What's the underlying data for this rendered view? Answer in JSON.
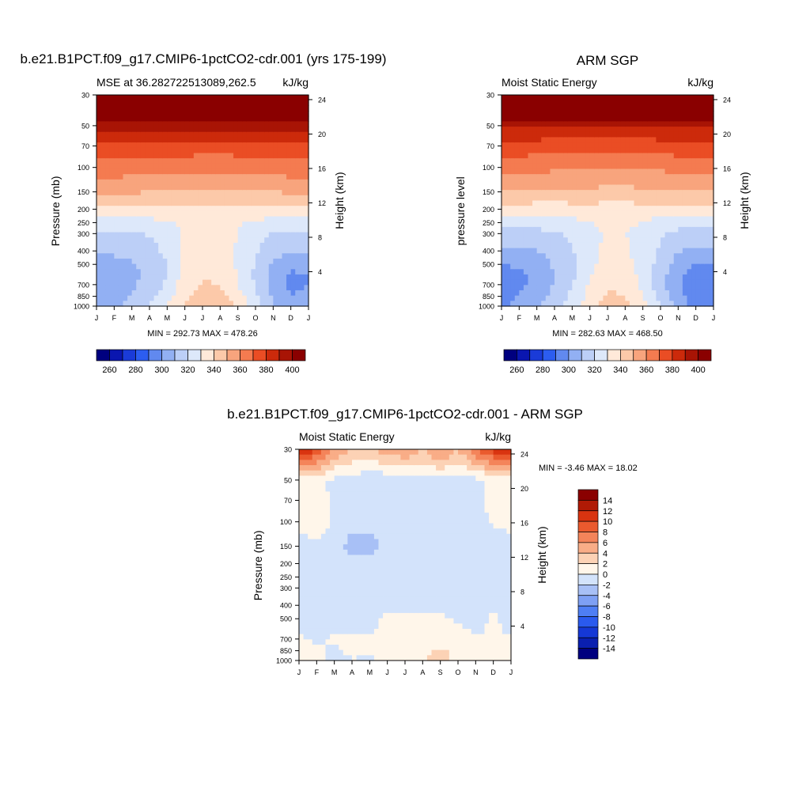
{
  "palettes": {
    "absolute": [
      "#00007f",
      "#0a16b0",
      "#1a3bd8",
      "#2c5df0",
      "#6189ef",
      "#92b0f3",
      "#bccff7",
      "#dde8fa",
      "#ffe9d9",
      "#fcc9a9",
      "#f8a47d",
      "#f47b50",
      "#ea4d24",
      "#cc2a0b",
      "#a81405",
      "#8a0000"
    ],
    "difference": [
      "#00007f",
      "#0a1fb0",
      "#1538d6",
      "#2a5aee",
      "#4e7ef4",
      "#7ea0f4",
      "#a8c0f6",
      "#d3e3fb",
      "#fff6ea",
      "#fcd2b5",
      "#f9ad87",
      "#f4845a",
      "#ea5a2e",
      "#d93410",
      "#b01a05",
      "#8a0000"
    ]
  },
  "chart_data": [
    {
      "id": "model",
      "type": "heatmap",
      "title": "b.e21.B1PCT.f09_g17.CMIP6-1pctCO2-cdr.001 (yrs 175-199)",
      "left_title": "MSE at 36.282722513089,262.5",
      "right_title": "kJ/kg",
      "ylabel": "Pressure (mb)",
      "y2label": "Height (km)",
      "x_ticks": [
        "J",
        "F",
        "M",
        "A",
        "M",
        "J",
        "J",
        "A",
        "S",
        "O",
        "N",
        "D",
        "J"
      ],
      "y_ticks": [
        30,
        50,
        70,
        100,
        150,
        200,
        250,
        300,
        400,
        500,
        700,
        850,
        1000
      ],
      "y2_ticks": [
        24,
        20,
        16,
        12,
        8,
        4
      ],
      "stats": "MIN = 292.73 MAX = 478.26",
      "levels": [
        260,
        270,
        280,
        290,
        300,
        310,
        320,
        330,
        340,
        350,
        360,
        370,
        380,
        390,
        400
      ],
      "colorbar_labels": [
        "260",
        "280",
        "300",
        "320",
        "340",
        "360",
        "380",
        "400"
      ],
      "palette": "absolute",
      "profile_p": [
        1000,
        925,
        850,
        700,
        600,
        500,
        400,
        300,
        250,
        200,
        150,
        100,
        70,
        50,
        30
      ],
      "profile_v": [
        [
          304,
          304,
          302,
          300,
          300,
          304,
          312,
          318,
          326,
          338,
          352,
          366,
          378,
          394,
          460
        ],
        [
          308,
          308,
          306,
          304,
          304,
          306,
          312,
          318,
          326,
          337,
          351,
          366,
          377,
          394,
          460
        ],
        [
          312,
          312,
          310,
          308,
          307,
          309,
          314,
          319,
          326,
          337,
          351,
          365,
          377,
          394,
          460
        ],
        [
          320,
          318,
          316,
          314,
          313,
          314,
          317,
          321,
          327,
          337,
          350,
          364,
          376,
          394,
          460
        ],
        [
          330,
          328,
          326,
          322,
          320,
          320,
          322,
          324,
          329,
          338,
          350,
          364,
          376,
          394,
          460
        ],
        [
          340,
          339,
          338,
          336,
          334,
          333,
          332,
          331,
          332,
          338,
          350,
          364,
          376,
          394,
          460
        ],
        [
          348,
          346,
          344,
          341,
          339,
          337,
          335,
          333,
          333,
          338,
          349,
          363,
          375,
          394,
          460
        ],
        [
          347,
          345,
          343,
          340,
          338,
          336,
          334,
          333,
          333,
          338,
          349,
          363,
          375,
          394,
          460
        ],
        [
          338,
          336,
          334,
          330,
          329,
          329,
          329,
          330,
          331,
          337,
          349,
          363,
          376,
          394,
          460
        ],
        [
          326,
          324,
          322,
          319,
          318,
          319,
          321,
          324,
          328,
          337,
          349,
          364,
          376,
          394,
          460
        ],
        [
          310,
          310,
          308,
          306,
          306,
          309,
          314,
          319,
          327,
          337,
          350,
          365,
          377,
          394,
          460
        ],
        [
          300,
          302,
          300,
          298,
          298,
          303,
          311,
          318,
          326,
          338,
          351,
          366,
          378,
          394,
          460
        ],
        [
          304,
          304,
          302,
          300,
          300,
          304,
          312,
          318,
          326,
          338,
          352,
          366,
          378,
          394,
          460
        ]
      ]
    },
    {
      "id": "obs",
      "type": "heatmap",
      "title": "ARM SGP",
      "left_title": "Moist Static Energy",
      "right_title": "kJ/kg",
      "ylabel": "pressure level",
      "y2label": "Height (km)",
      "x_ticks": [
        "J",
        "F",
        "M",
        "A",
        "M",
        "J",
        "J",
        "A",
        "S",
        "O",
        "N",
        "D",
        "J"
      ],
      "y_ticks": [
        30,
        50,
        70,
        100,
        150,
        200,
        250,
        300,
        400,
        500,
        700,
        850,
        1000
      ],
      "y2_ticks": [
        24,
        20,
        16,
        12,
        8,
        4
      ],
      "stats": "MIN = 282.63 MAX = 468.50",
      "levels": [
        260,
        270,
        280,
        290,
        300,
        310,
        320,
        330,
        340,
        350,
        360,
        370,
        380,
        390,
        400
      ],
      "colorbar_labels": [
        "260",
        "280",
        "300",
        "320",
        "340",
        "360",
        "380",
        "400"
      ],
      "palette": "absolute",
      "profile_p": [
        1000,
        925,
        850,
        700,
        600,
        500,
        400,
        300,
        250,
        200,
        150,
        100,
        70,
        50,
        30
      ],
      "profile_v": [
        [
          298,
          298,
          296,
          294,
          294,
          300,
          308,
          316,
          324,
          336,
          350,
          364,
          376,
          392,
          455
        ],
        [
          302,
          302,
          300,
          298,
          298,
          302,
          309,
          316,
          324,
          336,
          350,
          364,
          376,
          392,
          455
        ],
        [
          308,
          307,
          305,
          303,
          303,
          305,
          310,
          317,
          324,
          335,
          349,
          363,
          375,
          392,
          455
        ],
        [
          317,
          315,
          313,
          311,
          310,
          311,
          314,
          319,
          325,
          335,
          348,
          362,
          374,
          392,
          455
        ],
        [
          327,
          325,
          323,
          320,
          318,
          318,
          319,
          322,
          327,
          336,
          348,
          362,
          374,
          392,
          455
        ],
        [
          337,
          335,
          333,
          331,
          329,
          328,
          327,
          328,
          330,
          336,
          348,
          362,
          374,
          392,
          455
        ],
        [
          345,
          344,
          342,
          338,
          336,
          334,
          332,
          331,
          331,
          336,
          347,
          361,
          373,
          392,
          455
        ],
        [
          343,
          342,
          340,
          337,
          335,
          333,
          331,
          330,
          331,
          336,
          347,
          361,
          373,
          392,
          455
        ],
        [
          335,
          332,
          330,
          328,
          327,
          327,
          327,
          328,
          330,
          336,
          348,
          362,
          374,
          392,
          455
        ],
        [
          320,
          318,
          316,
          314,
          314,
          316,
          318,
          321,
          326,
          336,
          348,
          362,
          375,
          392,
          455
        ],
        [
          306,
          305,
          303,
          302,
          302,
          305,
          311,
          317,
          325,
          336,
          349,
          363,
          376,
          392,
          455
        ],
        [
          296,
          297,
          295,
          294,
          294,
          300,
          308,
          316,
          324,
          336,
          350,
          364,
          376,
          392,
          455
        ],
        [
          298,
          298,
          296,
          294,
          294,
          300,
          308,
          316,
          324,
          336,
          350,
          364,
          376,
          392,
          455
        ]
      ]
    },
    {
      "id": "diff",
      "type": "heatmap",
      "title": "b.e21.B1PCT.f09_g17.CMIP6-1pctCO2-cdr.001 - ARM SGP",
      "left_title": "Moist Static Energy",
      "right_title": "kJ/kg",
      "ylabel": "Pressure (mb)",
      "y2label": "Height (km)",
      "x_ticks": [
        "J",
        "F",
        "M",
        "A",
        "M",
        "J",
        "J",
        "A",
        "S",
        "O",
        "N",
        "D",
        "J"
      ],
      "y_ticks": [
        30,
        50,
        70,
        100,
        150,
        200,
        250,
        300,
        400,
        500,
        700,
        850,
        1000
      ],
      "y2_ticks": [
        24,
        20,
        16,
        12,
        8,
        4
      ],
      "stats": "MIN =  -3.46 MAX =  18.02",
      "levels": [
        -14,
        -12,
        -10,
        -8,
        -6,
        -4,
        -2,
        0,
        2,
        4,
        6,
        8,
        10,
        12,
        14
      ],
      "colorbar_labels": [
        "14",
        "12",
        "10",
        "8",
        "6",
        "4",
        "2",
        "0",
        "-2",
        "-4",
        "-6",
        "-8",
        "-10",
        "-12",
        "-14"
      ],
      "palette": "difference",
      "profile_p": [
        1000,
        925,
        850,
        700,
        600,
        500,
        400,
        300,
        250,
        200,
        150,
        100,
        70,
        50,
        30
      ],
      "profile_v": [
        [
          1,
          1,
          1,
          0.5,
          -0.5,
          -1,
          -1,
          -0.5,
          -0.5,
          -1,
          -1,
          1,
          1,
          0.5,
          13
        ],
        [
          0.5,
          0.5,
          0.5,
          -0.5,
          -0.5,
          -1,
          -1,
          -1,
          -1,
          -0.5,
          -1,
          2,
          1,
          0.5,
          10
        ],
        [
          -0.5,
          -0.5,
          -0.5,
          0.5,
          -0.5,
          -1,
          -1,
          -1,
          -1,
          -0.5,
          -1,
          -0.5,
          -0.5,
          -0.5,
          6
        ],
        [
          -0.5,
          0.5,
          1,
          1,
          -0.5,
          -1,
          -1,
          -1,
          -1,
          -1,
          -3,
          -1,
          -1,
          -0.5,
          4
        ],
        [
          -1,
          0.5,
          1,
          0.5,
          -0.5,
          -0.5,
          -1,
          -1,
          -1,
          -1,
          -3,
          -1,
          -1,
          -2,
          4
        ],
        [
          0.5,
          1,
          1,
          1,
          0.5,
          0.5,
          -0.5,
          -1,
          -1,
          -0.5,
          -1,
          -1,
          -1,
          -1,
          5
        ],
        [
          1,
          1,
          1,
          0.5,
          0.5,
          0.5,
          -0.5,
          -1,
          -1,
          -1,
          -1,
          -0.5,
          -1,
          -1,
          6
        ],
        [
          1,
          2,
          1,
          1,
          1,
          0.5,
          -0.5,
          -1,
          -1,
          -0.5,
          -1,
          -1,
          -1,
          -0.5,
          4
        ],
        [
          1,
          4.5,
          2,
          1,
          1,
          0.5,
          -0.5,
          -1,
          -1,
          -1,
          -1,
          -1,
          -1,
          -1,
          7
        ],
        [
          1,
          1,
          1,
          1,
          0.5,
          -0.5,
          -1,
          -1,
          -1,
          -0.5,
          -1,
          -0.5,
          -1,
          -0.5,
          4
        ],
        [
          0.5,
          0.5,
          0.5,
          0.5,
          -0.5,
          -1,
          -1,
          -1,
          -1,
          -0.5,
          -0.5,
          -1,
          -0.5,
          -0.5,
          8
        ],
        [
          1,
          0.5,
          0.5,
          0.5,
          0.5,
          0.5,
          -0.5,
          -1,
          -0.5,
          -0.5,
          -2,
          0.5,
          0.5,
          0.5,
          11
        ],
        [
          1,
          1,
          1,
          0.5,
          -0.5,
          -1,
          -1,
          -0.5,
          -0.5,
          -1,
          -1,
          1,
          1,
          0.5,
          13
        ]
      ]
    }
  ]
}
